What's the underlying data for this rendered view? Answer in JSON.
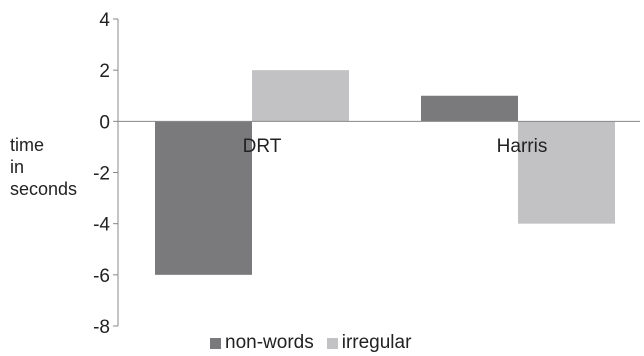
{
  "chart_data": {
    "type": "bar",
    "title": "",
    "xlabel": "",
    "ylabel": [
      "time",
      "in",
      "seconds"
    ],
    "categories": [
      "DRT",
      "Harris"
    ],
    "series": [
      {
        "name": "non-words",
        "values": [
          -6,
          1
        ],
        "color": "#7a7a7c"
      },
      {
        "name": "irregular",
        "values": [
          2,
          -4
        ],
        "color": "#c2c2c4"
      }
    ],
    "ylim": [
      -8,
      4
    ],
    "yticks": [
      "4",
      "2",
      "0",
      "-2",
      "-4",
      "-6",
      "-8"
    ],
    "grid": false,
    "legend_position": "bottom"
  }
}
